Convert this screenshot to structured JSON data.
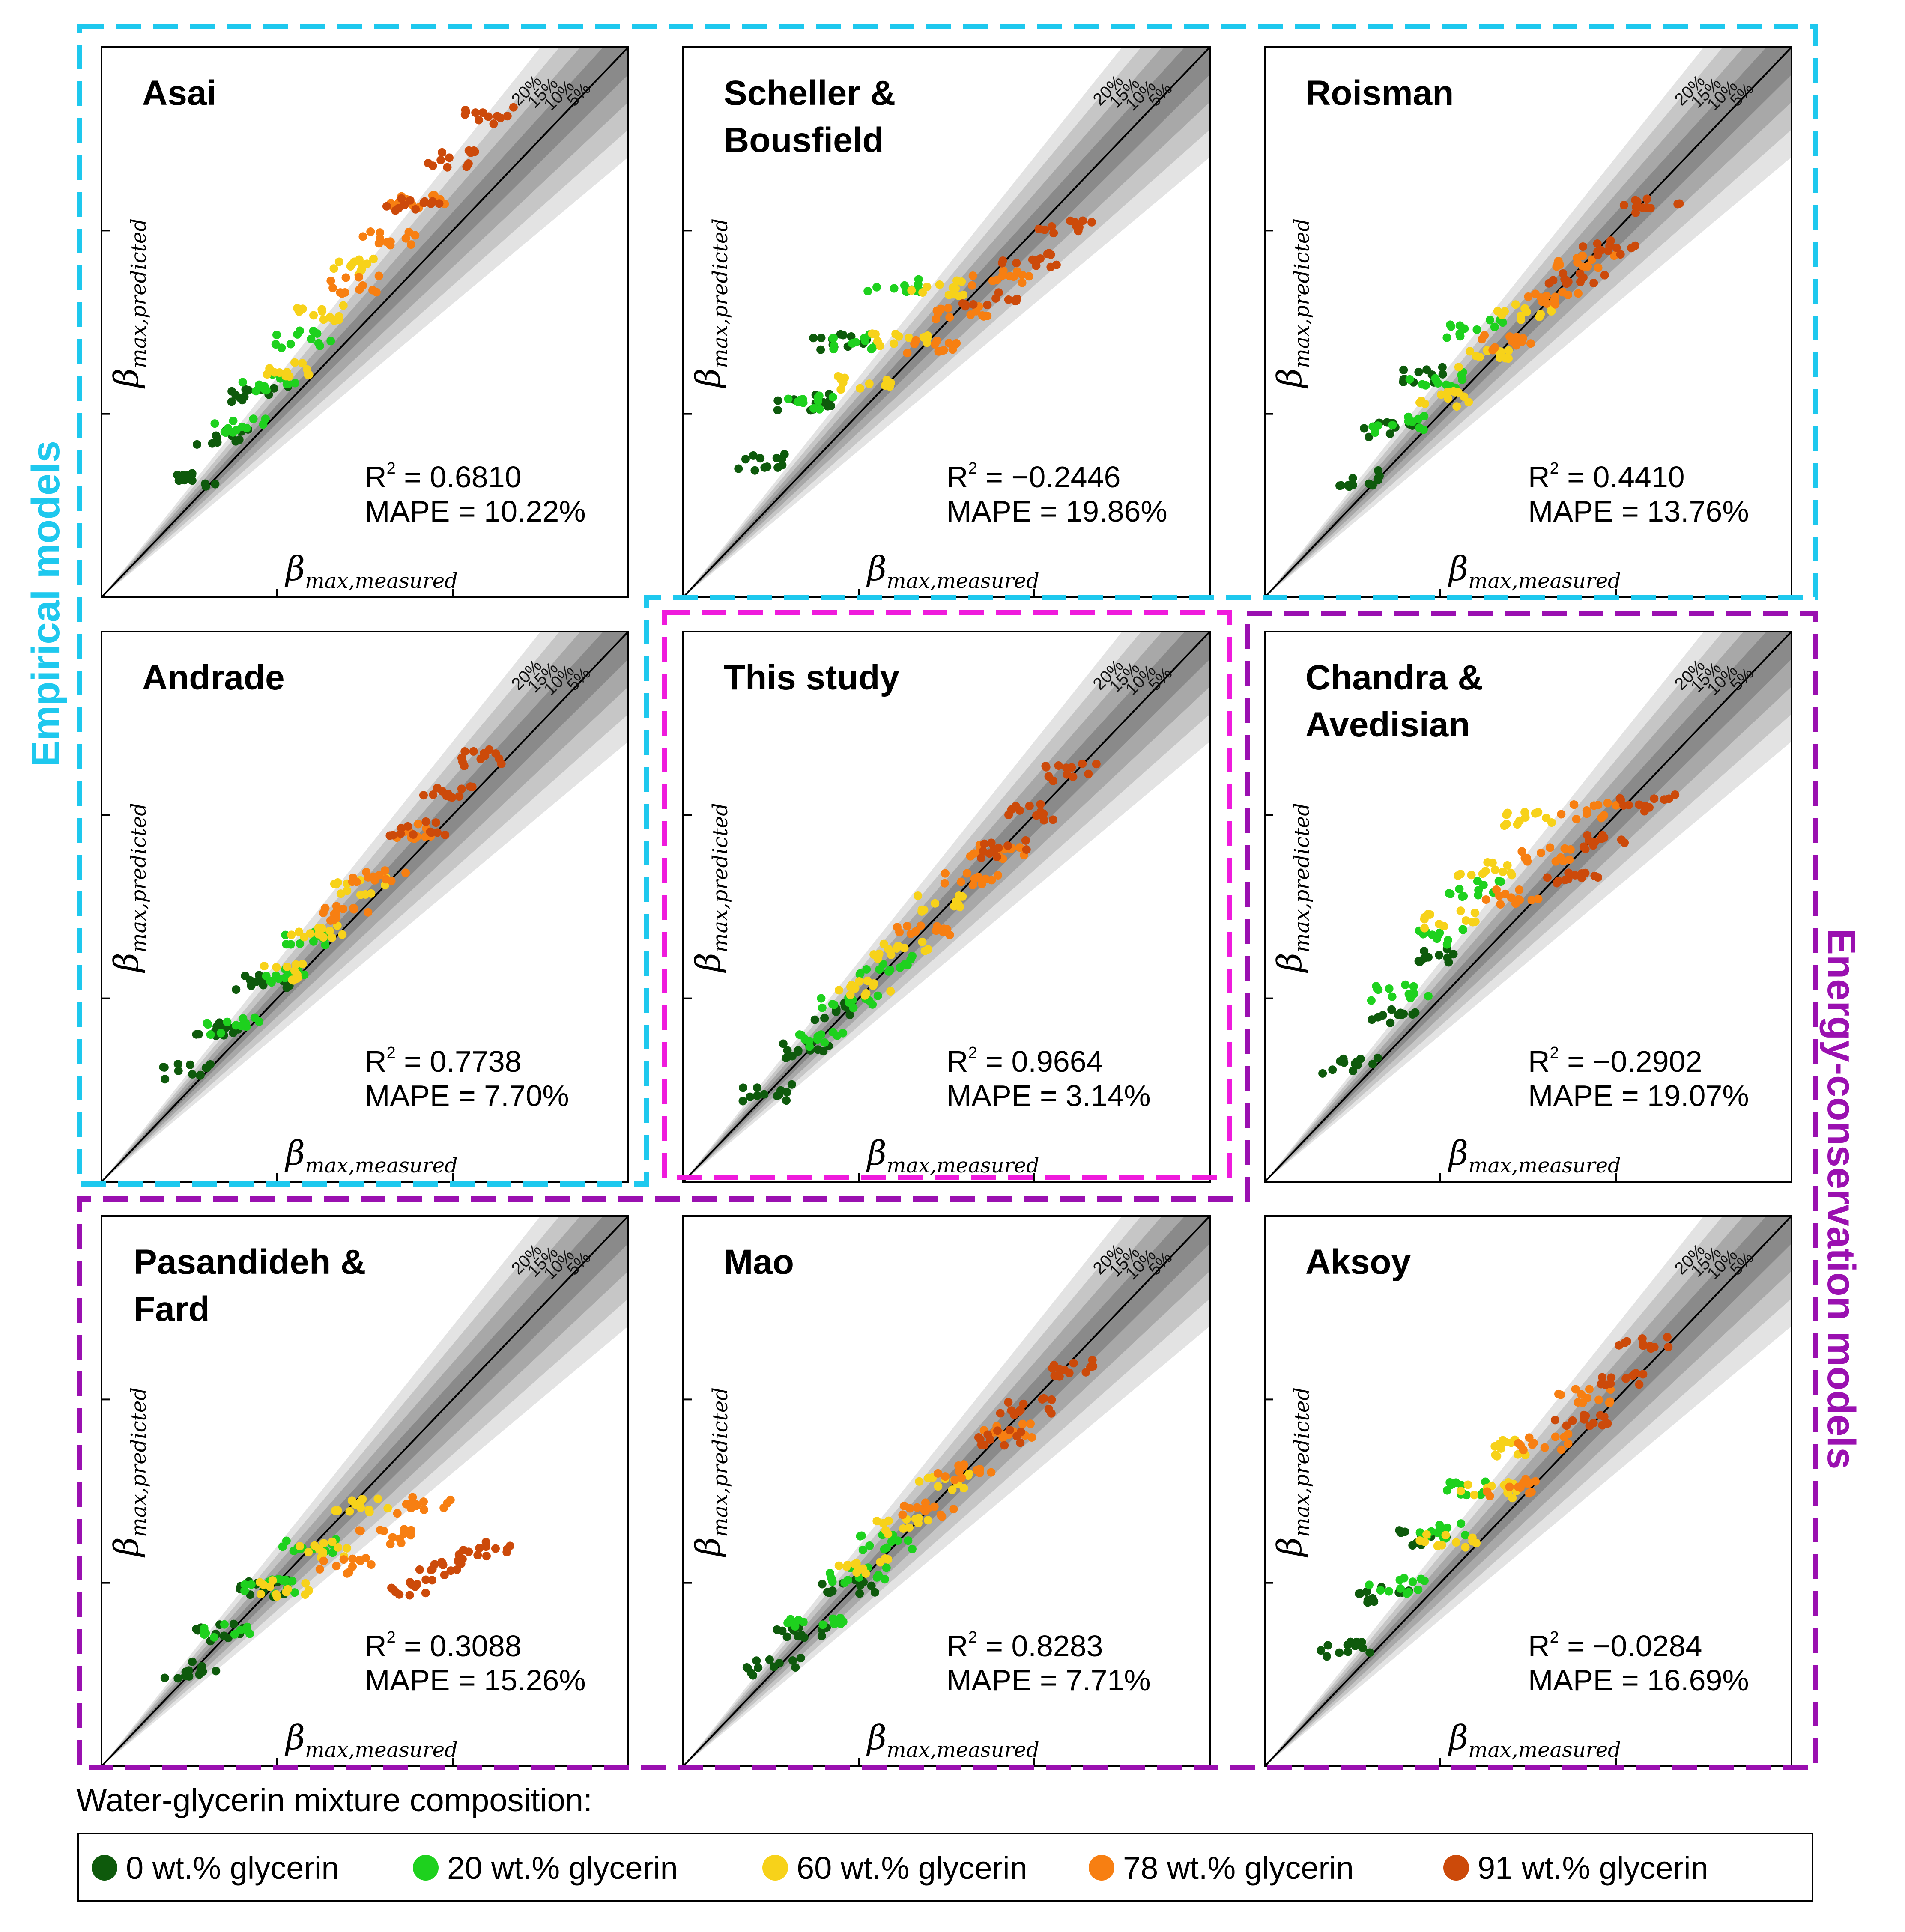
{
  "figure": {
    "group_labels": {
      "empirical": "Empirical models",
      "energy": "Energy-conservation models"
    },
    "colors": {
      "empirical": "#1ec8ee",
      "this_study": "#ef1bdc",
      "energy": "#9a10b0",
      "band_5": "#8a8a8a",
      "band_10": "#a8a8a8",
      "band_15": "#c6c6c6",
      "band_20": "#e3e3e3"
    },
    "legend": {
      "title": "Water-glycerin mixture composition:",
      "items": [
        {
          "label": "0 wt.% glycerin",
          "color": "#0e5a0c"
        },
        {
          "label": "20 wt.% glycerin",
          "color": "#1ed11e"
        },
        {
          "label": "60 wt.% glycerin",
          "color": "#f7d21a"
        },
        {
          "label": "78 wt.% glycerin",
          "color": "#f77f12"
        },
        {
          "label": "91 wt.% glycerin",
          "color": "#cc4a0a"
        }
      ]
    }
  },
  "chart_data": [
    {
      "type": "scatter",
      "title": [
        "Asai"
      ],
      "xlabel": {
        "base": "β",
        "sub": "max,measured"
      },
      "ylabel": {
        "base": "β",
        "sub": "max,predicted"
      },
      "band_labels": [
        "20%",
        "15%",
        "10%",
        "5%"
      ],
      "r2_text": "= 0.6810",
      "mape_text": "MAPE = 10.22%",
      "ratios": [
        1.24,
        1.22,
        1.21,
        1.2,
        1.2
      ],
      "series_x": [
        0.235,
        0.325,
        0.42,
        0.535,
        0.66
      ]
    },
    {
      "type": "scatter",
      "title": [
        "Scheller &",
        "Bousfield"
      ],
      "xlabel": {
        "base": "β",
        "sub": "max,measured"
      },
      "ylabel": {
        "base": "β",
        "sub": "max,predicted"
      },
      "band_labels": [
        "20%",
        "15%",
        "10%",
        "5%"
      ],
      "r2_text": "= −0.2446",
      "mape_text": "MAPE = 19.86%",
      "ratios": [
        1.55,
        1.4,
        1.15,
        0.97,
        0.93
      ],
      "series_x": [
        0.235,
        0.325,
        0.42,
        0.535,
        0.66
      ]
    },
    {
      "type": "scatter",
      "title": [
        "Roisman"
      ],
      "xlabel": {
        "base": "β",
        "sub": "max,measured"
      },
      "ylabel": {
        "base": "β",
        "sub": "max,predicted"
      },
      "band_labels": [
        "20%",
        "15%",
        "10%",
        "5%"
      ],
      "r2_text": "= 0.4410",
      "mape_text": "MAPE = 13.76%",
      "ratios": [
        1.3,
        1.22,
        1.05,
        1.0,
        0.97
      ],
      "series_x": [
        0.235,
        0.325,
        0.42,
        0.535,
        0.66
      ]
    },
    {
      "type": "scatter",
      "title": [
        "Andrade"
      ],
      "xlabel": {
        "base": "β",
        "sub": "max,measured"
      },
      "ylabel": {
        "base": "β",
        "sub": "max,predicted"
      },
      "band_labels": [
        "20%",
        "15%",
        "10%",
        "5%"
      ],
      "r2_text": "= 0.7738",
      "mape_text": "MAPE = 7.70%",
      "ratios": [
        1.2,
        1.12,
        1.1,
        1.06,
        1.07
      ],
      "series_x": [
        0.235,
        0.325,
        0.42,
        0.535,
        0.66
      ]
    },
    {
      "type": "scatter",
      "title": [
        "This study"
      ],
      "xlabel": {
        "base": "β",
        "sub": "max,measured"
      },
      "ylabel": {
        "base": "β",
        "sub": "max,predicted"
      },
      "band_labels": [
        "20%",
        "15%",
        "10%",
        "5%"
      ],
      "r2_text": "= 0.9664",
      "mape_text": "MAPE = 3.14%",
      "ratios": [
        1.03,
        1.02,
        1.02,
        1.01,
        1.01
      ],
      "series_x": [
        0.235,
        0.325,
        0.42,
        0.535,
        0.66
      ]
    },
    {
      "type": "scatter",
      "title": [
        "Chandra &",
        "Avedisian"
      ],
      "xlabel": {
        "base": "β",
        "sub": "max,measured"
      },
      "ylabel": {
        "base": "β",
        "sub": "max,predicted"
      },
      "band_labels": [
        "20%",
        "15%",
        "10%",
        "5%"
      ],
      "r2_text": "= −0.2902",
      "mape_text": "MAPE = 19.07%",
      "ratios": [
        1.3,
        1.35,
        1.35,
        1.1,
        0.95
      ],
      "series_x": [
        0.235,
        0.325,
        0.42,
        0.535,
        0.66
      ]
    },
    {
      "type": "scatter",
      "title": [
        "Pasandideh &",
        "Fard"
      ],
      "xlabel": {
        "base": "β",
        "sub": "max,measured"
      },
      "ylabel": {
        "base": "β",
        "sub": "max,predicted"
      },
      "band_labels": [
        "20%",
        "15%",
        "10%",
        "5%"
      ],
      "r2_text": "= 0.3088",
      "mape_text": "MAPE = 15.26%",
      "ratios": [
        1.05,
        1.02,
        0.95,
        0.78,
        0.55
      ],
      "series_x": [
        0.235,
        0.325,
        0.42,
        0.535,
        0.66
      ]
    },
    {
      "type": "scatter",
      "title": [
        "Mao"
      ],
      "xlabel": {
        "base": "β",
        "sub": "max,measured"
      },
      "ylabel": {
        "base": "β",
        "sub": "max,predicted"
      },
      "band_labels": [
        "20%",
        "15%",
        "10%",
        "5%"
      ],
      "r2_text": "= 0.8283",
      "mape_text": "MAPE = 7.71%",
      "ratios": [
        1.05,
        1.05,
        1.05,
        1.0,
        1.0
      ],
      "series_x": [
        0.235,
        0.325,
        0.42,
        0.535,
        0.66
      ]
    },
    {
      "type": "scatter",
      "title": [
        "Aksoy"
      ],
      "xlabel": {
        "base": "β",
        "sub": "max,measured"
      },
      "ylabel": {
        "base": "β",
        "sub": "max,predicted"
      },
      "band_labels": [
        "20%",
        "15%",
        "10%",
        "5%"
      ],
      "r2_text": "= −0.0284",
      "mape_text": "MAPE = 16.69%",
      "ratios": [
        1.35,
        1.3,
        1.18,
        1.1,
        1.05
      ],
      "series_x": [
        0.235,
        0.325,
        0.42,
        0.535,
        0.66
      ]
    }
  ]
}
